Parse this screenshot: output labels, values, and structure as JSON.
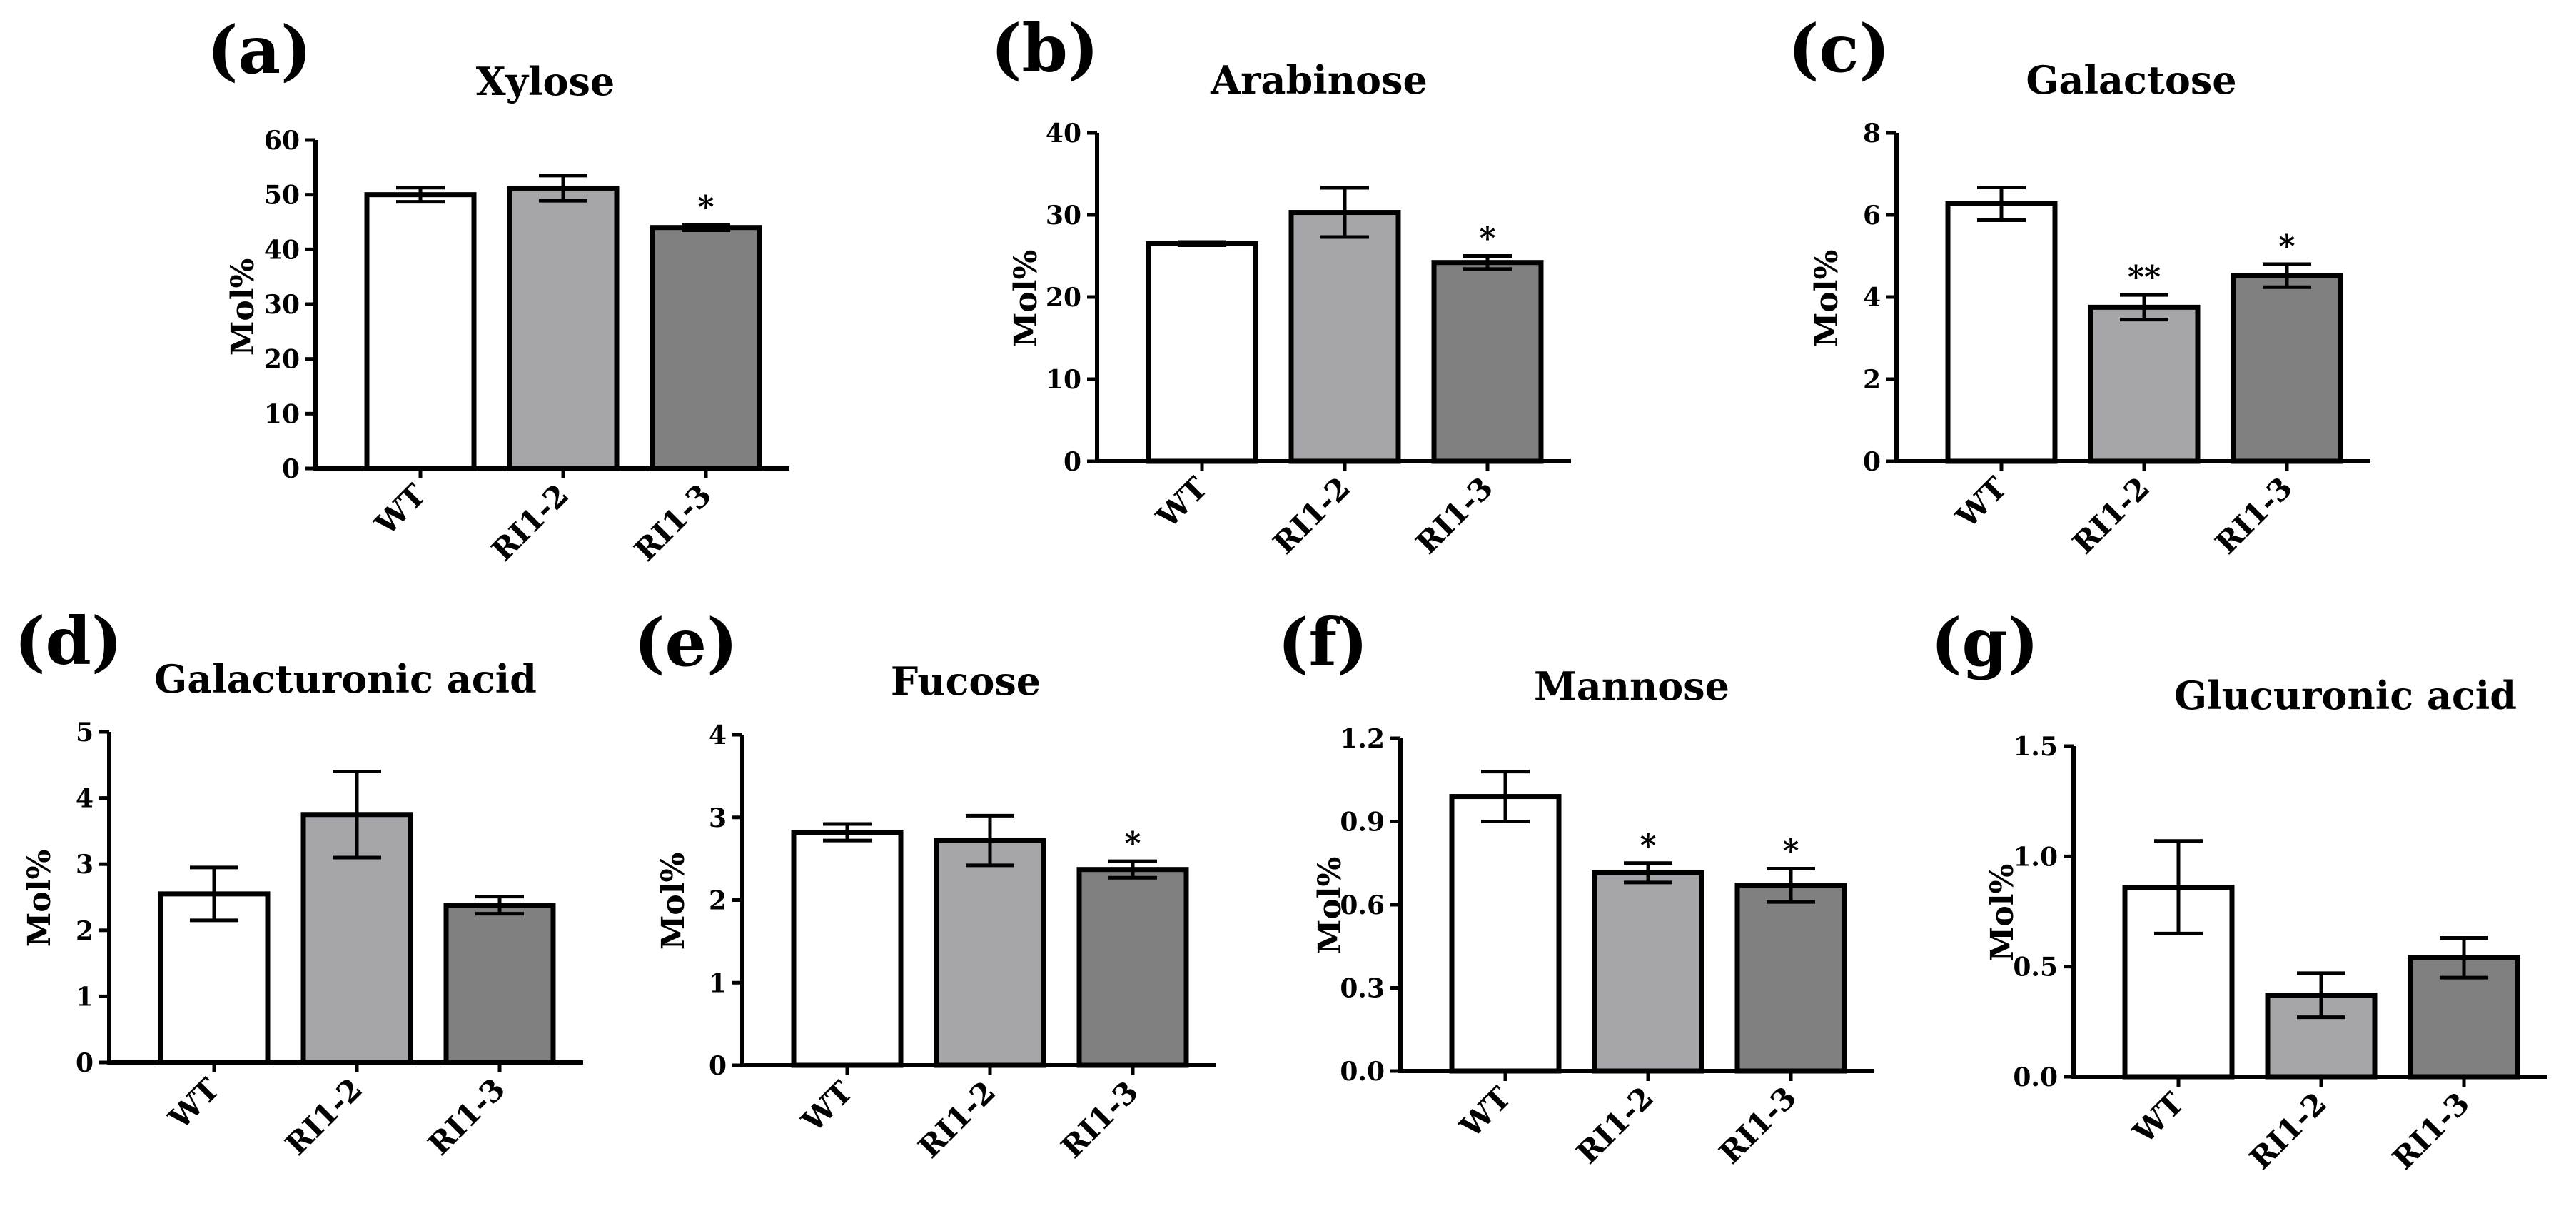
{
  "colors": {
    "WT": "#ffffff",
    "RI1-2": "#a6a5aa",
    "RI1-3": "#808080",
    "stroke": "#000000"
  },
  "y_axis_label": "Mol%",
  "chart_data": [
    {
      "panel": "(a)",
      "type": "bar",
      "title": "Xylose",
      "ylabel": "Mol%",
      "categories": [
        "WT",
        "RI1-2",
        "RI1-3"
      ],
      "values": [
        50.0,
        51.2,
        44.0
      ],
      "errors": [
        1.3,
        2.3,
        0.5
      ],
      "significance": [
        "",
        "",
        "*"
      ],
      "ylim": [
        0,
        60
      ],
      "yticks": [
        "0",
        "10",
        "20",
        "30",
        "40",
        "50",
        "60"
      ]
    },
    {
      "panel": "(b)",
      "type": "bar",
      "title": "Arabinose",
      "ylabel": "Mol%",
      "categories": [
        "WT",
        "RI1-2",
        "RI1-3"
      ],
      "values": [
        26.5,
        30.3,
        24.2
      ],
      "errors": [
        0.2,
        3.0,
        0.8
      ],
      "significance": [
        "",
        "",
        "*"
      ],
      "ylim": [
        0,
        40
      ],
      "yticks": [
        "0",
        "10",
        "20",
        "30",
        "40"
      ]
    },
    {
      "panel": "(c)",
      "type": "bar",
      "title": "Galactose",
      "ylabel": "Mol%",
      "categories": [
        "WT",
        "RI1-2",
        "RI1-3"
      ],
      "values": [
        6.27,
        3.75,
        4.52
      ],
      "errors": [
        0.4,
        0.3,
        0.28
      ],
      "significance": [
        "",
        "**",
        "*"
      ],
      "ylim": [
        0,
        8
      ],
      "yticks": [
        "0",
        "2",
        "4",
        "6",
        "8"
      ]
    },
    {
      "panel": "(d)",
      "type": "bar",
      "title": "Galacturonic acid",
      "ylabel": "Mol%",
      "categories": [
        "WT",
        "RI1-2",
        "RI1-3"
      ],
      "values": [
        2.55,
        3.75,
        2.38
      ],
      "errors": [
        0.4,
        0.65,
        0.13
      ],
      "significance": [
        "",
        "",
        ""
      ],
      "ylim": [
        0,
        5
      ],
      "yticks": [
        "0",
        "1",
        "2",
        "3",
        "4",
        "5"
      ]
    },
    {
      "panel": "(e)",
      "type": "bar",
      "title": "Fucose",
      "ylabel": "Mol%",
      "categories": [
        "WT",
        "RI1-2",
        "RI1-3"
      ],
      "values": [
        2.82,
        2.72,
        2.37
      ],
      "errors": [
        0.1,
        0.3,
        0.1
      ],
      "significance": [
        "",
        "",
        "*"
      ],
      "ylim": [
        0,
        4
      ],
      "yticks": [
        "0",
        "1",
        "2",
        "3",
        "4"
      ]
    },
    {
      "panel": "(f)",
      "type": "bar",
      "title": "Mannose",
      "ylabel": "Mol%",
      "categories": [
        "WT",
        "RI1-2",
        "RI1-3"
      ],
      "values": [
        0.99,
        0.715,
        0.67
      ],
      "errors": [
        0.09,
        0.035,
        0.06
      ],
      "significance": [
        "",
        "*",
        "*"
      ],
      "ylim": [
        0,
        1.2
      ],
      "yticks": [
        "0.0",
        "0.3",
        "0.6",
        "0.9",
        "1.2"
      ]
    },
    {
      "panel": "(g)",
      "type": "bar",
      "title": "Glucuronic acid",
      "ylabel": "Mol%",
      "categories": [
        "WT",
        "RI1-2",
        "RI1-3"
      ],
      "values": [
        0.86,
        0.37,
        0.54
      ],
      "errors": [
        0.21,
        0.1,
        0.09
      ],
      "significance": [
        "",
        "",
        ""
      ],
      "ylim": [
        0,
        1.5
      ],
      "yticks": [
        "0.0",
        "0.5",
        "1.0",
        "1.5"
      ]
    }
  ]
}
